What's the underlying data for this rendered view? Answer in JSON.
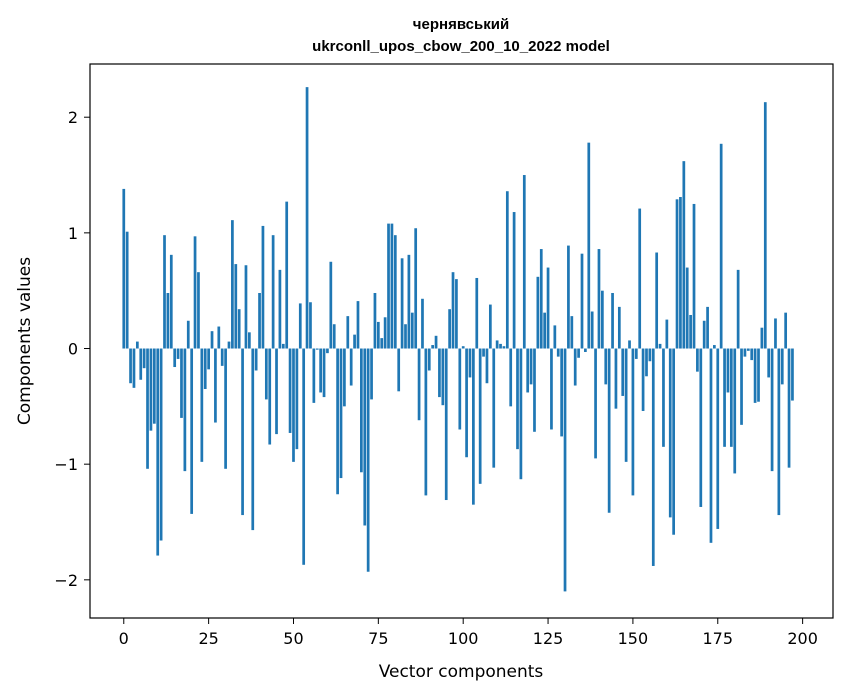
{
  "chart_data": {
    "type": "bar",
    "title_line1": "чернявський",
    "title_line2": "ukrconll_upos_cbow_200_10_2022 model",
    "xlabel": "Vector components",
    "ylabel": "Components values",
    "xlim": [
      -9.95,
      208.95
    ],
    "ylim": [
      -2.33,
      2.46
    ],
    "xticks": [
      0,
      25,
      50,
      75,
      100,
      125,
      150,
      175,
      200
    ],
    "xtick_labels": [
      "0",
      "25",
      "50",
      "75",
      "100",
      "125",
      "150",
      "175",
      "200"
    ],
    "yticks": [
      -2,
      -1,
      0,
      1,
      2
    ],
    "ytick_labels": [
      "−2",
      "−1",
      "0",
      "1",
      "2"
    ],
    "bar_color": "#1f77b4",
    "values": [
      1.38,
      1.01,
      -0.3,
      -0.34,
      0.06,
      -0.27,
      -0.17,
      -1.04,
      -0.71,
      -0.65,
      -1.79,
      -1.66,
      0.98,
      0.48,
      0.81,
      -0.16,
      -0.09,
      -0.6,
      -1.06,
      0.24,
      -1.43,
      0.97,
      0.66,
      -0.98,
      -0.35,
      -0.18,
      0.15,
      -0.64,
      0.19,
      -0.15,
      -1.04,
      0.06,
      1.11,
      0.73,
      0.34,
      -1.44,
      0.72,
      0.14,
      -1.57,
      -0.19,
      0.48,
      1.06,
      -0.44,
      -0.83,
      0.98,
      -0.74,
      0.68,
      0.04,
      1.27,
      -0.73,
      -0.98,
      -0.87,
      0.39,
      -1.87,
      2.26,
      0.4,
      -0.47,
      -0.01,
      -0.38,
      -0.42,
      -0.04,
      0.75,
      0.21,
      -1.26,
      -1.12,
      -0.5,
      0.28,
      -0.32,
      0.12,
      0.41,
      -1.07,
      -1.53,
      -1.93,
      -0.44,
      0.48,
      0.23,
      0.09,
      0.27,
      1.08,
      1.08,
      0.98,
      -0.37,
      0.78,
      0.21,
      0.81,
      0.31,
      1.04,
      -0.62,
      0.43,
      -1.27,
      -0.19,
      0.03,
      0.11,
      -0.42,
      -0.49,
      -1.31,
      0.34,
      0.66,
      0.6,
      -0.7,
      0.02,
      -0.94,
      -0.25,
      -1.35,
      0.61,
      -1.17,
      -0.07,
      -0.3,
      0.38,
      -1.03,
      0.07,
      0.04,
      0.02,
      1.36,
      -0.5,
      1.18,
      -0.87,
      -1.13,
      1.5,
      -0.38,
      -0.31,
      -0.72,
      0.62,
      0.86,
      0.31,
      0.7,
      -0.7,
      0.2,
      -0.07,
      -0.76,
      -2.1,
      0.89,
      0.28,
      -0.32,
      -0.08,
      0.82,
      -0.03,
      1.78,
      0.32,
      -0.95,
      0.86,
      0.5,
      -0.31,
      -1.42,
      0.48,
      -0.52,
      0.36,
      -0.41,
      -0.98,
      0.07,
      -1.27,
      -0.09,
      1.21,
      -0.54,
      -0.24,
      -0.11,
      -1.88,
      0.83,
      0.04,
      -0.85,
      0.25,
      -1.46,
      -1.61,
      1.29,
      1.31,
      1.62,
      0.7,
      0.29,
      1.25,
      -0.2,
      -1.37,
      0.24,
      0.36,
      -1.68,
      0.03,
      -1.56,
      1.77,
      -0.85,
      -0.38,
      -0.85,
      -1.08,
      0.68,
      -0.66,
      -0.07,
      -0.02,
      -0.1,
      -0.47,
      -0.46,
      0.18,
      2.13,
      -0.25,
      -1.06,
      0.26,
      -1.44,
      -0.31,
      0.31,
      -1.03,
      -0.45
    ]
  }
}
